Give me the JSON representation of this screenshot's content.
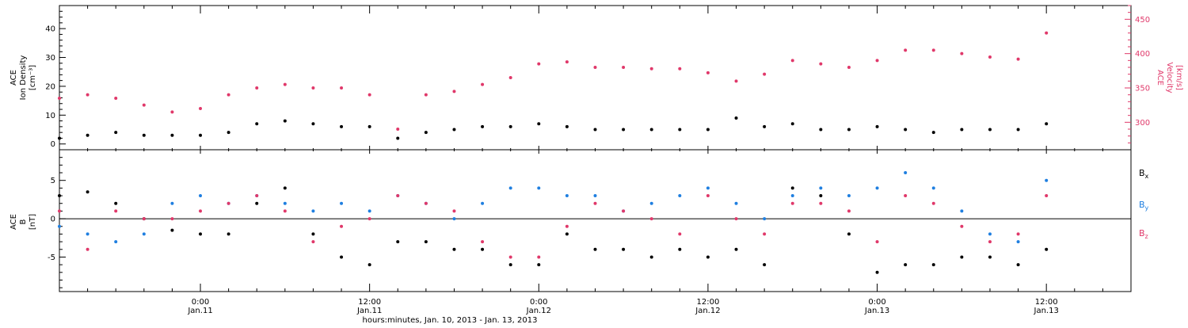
{
  "colors": {
    "black": "#000000",
    "blue": "#1f7fe0",
    "pink": "#e0386a"
  },
  "xaxis": {
    "title": "hours:minutes, Jan. 10, 2013 - Jan. 13, 2013",
    "ticks": [
      {
        "t": 24,
        "time": "0:00",
        "day": "Jan.11"
      },
      {
        "t": 36,
        "time": "12:00",
        "day": "Jan.11"
      },
      {
        "t": 48,
        "time": "0:00",
        "day": "Jan.12"
      },
      {
        "t": 60,
        "time": "12:00",
        "day": "Jan.12"
      },
      {
        "t": 72,
        "time": "0:00",
        "day": "Jan.13"
      },
      {
        "t": 84,
        "time": "12:00",
        "day": "Jan.13"
      }
    ]
  },
  "panel1": {
    "left_label": [
      "ACE",
      "Ion Density",
      "[cm⁻³]"
    ],
    "right_label": [
      "ACE",
      "Velocity",
      "[km/s]"
    ],
    "left_ticks": [
      0,
      10,
      20,
      30,
      40
    ],
    "right_ticks": [
      300,
      350,
      400,
      450
    ]
  },
  "panel2": {
    "left_label": [
      "ACE",
      "B",
      "[nT]"
    ],
    "left_ticks": [
      -5,
      0,
      5
    ],
    "legend": [
      "Bx",
      "By",
      "Bz"
    ]
  },
  "chart_data": [
    {
      "type": "scatter",
      "x_units": "hours since 2013-01-10 00:00",
      "xlim": [
        14,
        90
      ],
      "ylim": [
        -2,
        48
      ],
      "y2lim": [
        260,
        470
      ],
      "ylabel": "ACE Ion Density [cm⁻³]",
      "y2label": "ACE Velocity [km/s]",
      "series": [
        {
          "name": "Ion Density",
          "axis": "left",
          "color": "#000000",
          "x": [
            14,
            16,
            18,
            20,
            22,
            24,
            26,
            28,
            30,
            32,
            34,
            36,
            38,
            40,
            42,
            44,
            46,
            48,
            50,
            52,
            54,
            56,
            58,
            60,
            62,
            64,
            66,
            68,
            70,
            72,
            74,
            76,
            78,
            80,
            82,
            84
          ],
          "y": [
            2,
            3,
            4,
            3,
            3,
            3,
            4,
            7,
            8,
            7,
            6,
            6,
            2,
            4,
            5,
            6,
            6,
            7,
            6,
            5,
            5,
            5,
            5,
            5,
            9,
            6,
            7,
            5,
            5,
            6,
            5,
            4,
            5,
            5,
            5,
            7
          ]
        },
        {
          "name": "Velocity",
          "axis": "right",
          "color": "#e0386a",
          "x": [
            14,
            16,
            18,
            20,
            22,
            24,
            26,
            28,
            30,
            32,
            34,
            36,
            38,
            40,
            42,
            44,
            46,
            48,
            50,
            52,
            54,
            56,
            58,
            60,
            62,
            64,
            66,
            68,
            70,
            72,
            74,
            76,
            78,
            80,
            82,
            84
          ],
          "y": [
            335,
            340,
            335,
            325,
            315,
            320,
            340,
            350,
            355,
            350,
            350,
            340,
            290,
            340,
            345,
            355,
            365,
            385,
            388,
            380,
            380,
            378,
            378,
            372,
            360,
            370,
            390,
            385,
            380,
            390,
            405,
            405,
            400,
            395,
            392,
            430
          ]
        }
      ]
    },
    {
      "type": "scatter",
      "x_units": "hours since 2013-01-10 00:00",
      "xlim": [
        14,
        90
      ],
      "ylim": [
        -9.5,
        9
      ],
      "ylabel": "ACE B [nT]",
      "series": [
        {
          "name": "Bx",
          "color": "#000000",
          "x": [
            14,
            16,
            18,
            20,
            22,
            24,
            26,
            28,
            30,
            32,
            34,
            36,
            38,
            40,
            42,
            44,
            46,
            48,
            50,
            52,
            54,
            56,
            58,
            60,
            62,
            64,
            66,
            68,
            70,
            72,
            74,
            76,
            78,
            80,
            82,
            84
          ],
          "y": [
            3,
            3.5,
            2,
            0,
            -1.5,
            -2,
            -2,
            2,
            4,
            -2,
            -5,
            -6,
            -3,
            -3,
            -4,
            -4,
            -6,
            -6,
            -2,
            -4,
            -4,
            -5,
            -4,
            -5,
            -4,
            -6,
            4,
            3,
            -2,
            -7,
            -6,
            -6,
            -5,
            -5,
            -6,
            -4
          ]
        },
        {
          "name": "By",
          "color": "#1f7fe0",
          "x": [
            14,
            16,
            18,
            20,
            22,
            24,
            26,
            28,
            30,
            32,
            34,
            36,
            38,
            40,
            42,
            44,
            46,
            48,
            50,
            52,
            54,
            56,
            58,
            60,
            62,
            64,
            66,
            68,
            70,
            72,
            74,
            76,
            78,
            80,
            82,
            84
          ],
          "y": [
            -1,
            -2,
            -3,
            -2,
            2,
            3,
            2,
            3,
            2,
            1,
            2,
            1,
            3,
            2,
            0,
            2,
            4,
            4,
            3,
            3,
            1,
            2,
            3,
            4,
            2,
            0,
            3,
            4,
            3,
            4,
            6,
            4,
            1,
            -2,
            -3,
            5
          ]
        },
        {
          "name": "Bz",
          "color": "#e0386a",
          "x": [
            14,
            16,
            18,
            20,
            22,
            24,
            26,
            28,
            30,
            32,
            34,
            36,
            38,
            40,
            42,
            44,
            46,
            48,
            50,
            52,
            54,
            56,
            58,
            60,
            62,
            64,
            66,
            68,
            70,
            72,
            74,
            76,
            78,
            80,
            82,
            84
          ],
          "y": [
            1,
            -4,
            1,
            0,
            0,
            1,
            2,
            3,
            1,
            -3,
            -1,
            0,
            3,
            2,
            1,
            -3,
            -5,
            -5,
            -1,
            2,
            1,
            0,
            -2,
            3,
            0,
            -2,
            2,
            2,
            1,
            -3,
            3,
            2,
            -1,
            -3,
            -2,
            3
          ]
        }
      ]
    }
  ]
}
